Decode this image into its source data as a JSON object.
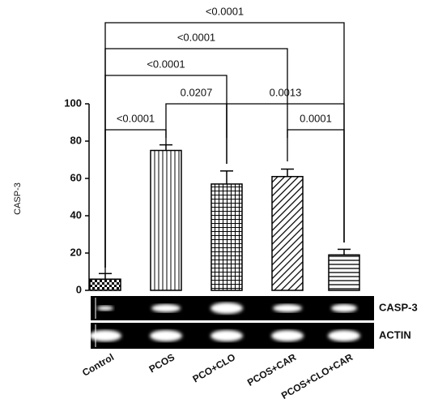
{
  "chart_data": {
    "type": "bar",
    "y_label": "CASP-3",
    "categories": [
      "Control",
      "PCOS",
      "PCO+CLO",
      "PCOS+CAR",
      "PCOS+CLO+CAR"
    ],
    "values": [
      6,
      75,
      57,
      61,
      19
    ],
    "errors": [
      3,
      3,
      7,
      4,
      3
    ],
    "ylim": [
      0,
      100
    ],
    "yticks": [
      0,
      20,
      40,
      60,
      80,
      100
    ],
    "color": "#000000",
    "comparisons": [
      {
        "label": "<0.0001"
      },
      {
        "label": "<0.0001"
      },
      {
        "label": "<0.0001"
      },
      {
        "label": "<0.0001"
      },
      {
        "label": "0.0207"
      },
      {
        "label": "0.0013"
      },
      {
        "label": "0.0001"
      }
    ],
    "blot_rows": [
      "CASP-3",
      "ACTIN"
    ]
  }
}
